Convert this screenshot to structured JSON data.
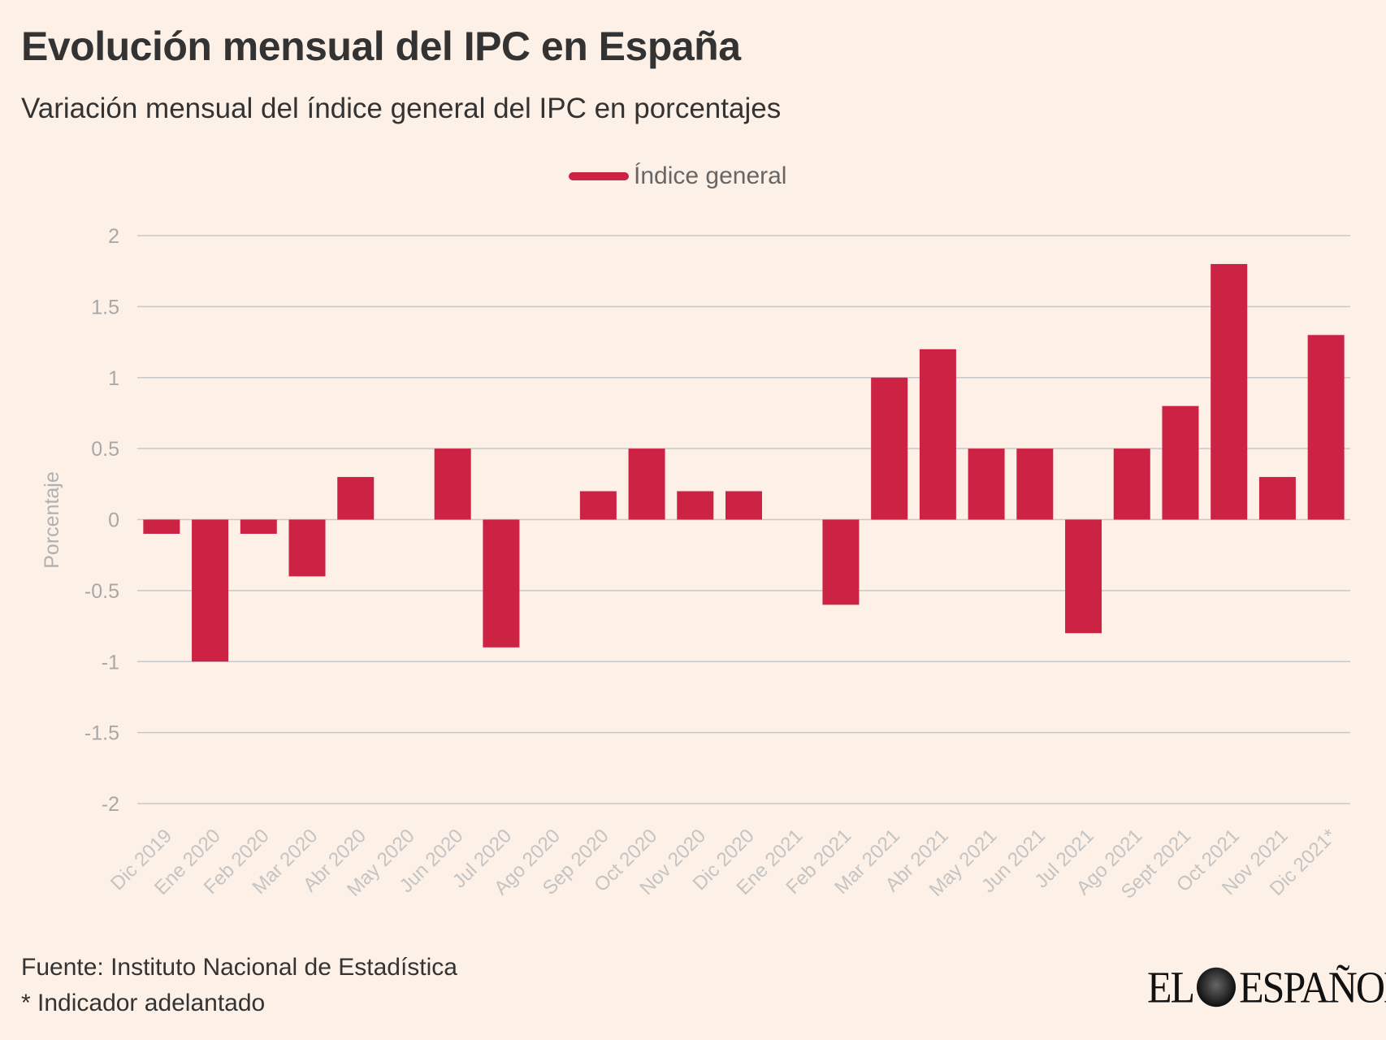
{
  "title": "Evolución mensual del IPC en España",
  "subtitle": "Variación mensual del índice general del IPC en porcentajes",
  "footer": {
    "source": "Fuente: Instituto Nacional de Estadística",
    "note": "* Indicador adelantado"
  },
  "logo": "EL ESPAÑOL",
  "chart_data": {
    "type": "bar",
    "title": "Evolución mensual del IPC en España",
    "subtitle": "Variación mensual del índice general del IPC en porcentajes",
    "ylabel": "Porcentaje",
    "xlabel": "",
    "ylim": [
      -2,
      2
    ],
    "yticks": [
      2,
      1.5,
      1,
      0.5,
      0,
      -0.5,
      -1,
      -1.5,
      -2
    ],
    "grid": true,
    "legend_position": "top-center",
    "color": "#cc2244",
    "categories": [
      "Dic 2019",
      "Ene 2020",
      "Feb 2020",
      "Mar 2020",
      "Abr 2020",
      "May 2020",
      "Jun 2020",
      "Jul 2020",
      "Ago 2020",
      "Sep 2020",
      "Oct 2020",
      "Nov 2020",
      "Dic 2020",
      "Ene 2021",
      "Feb 2021",
      "Mar 2021",
      "Abr 2021",
      "May 2021",
      "Jun 2021",
      "Jul 2021",
      "Ago 2021",
      "Sept 2021",
      "Oct 2021",
      "Nov 2021",
      "Dic 2021*"
    ],
    "series": [
      {
        "name": "Índice general",
        "values": [
          -0.1,
          -1.0,
          -0.1,
          -0.4,
          0.3,
          0,
          0.5,
          -0.9,
          0,
          0.2,
          0.5,
          0.2,
          0.2,
          0,
          -0.6,
          1.0,
          1.2,
          0.5,
          0.5,
          -0.8,
          0.5,
          0.8,
          1.8,
          0.3,
          1.3
        ]
      }
    ]
  }
}
